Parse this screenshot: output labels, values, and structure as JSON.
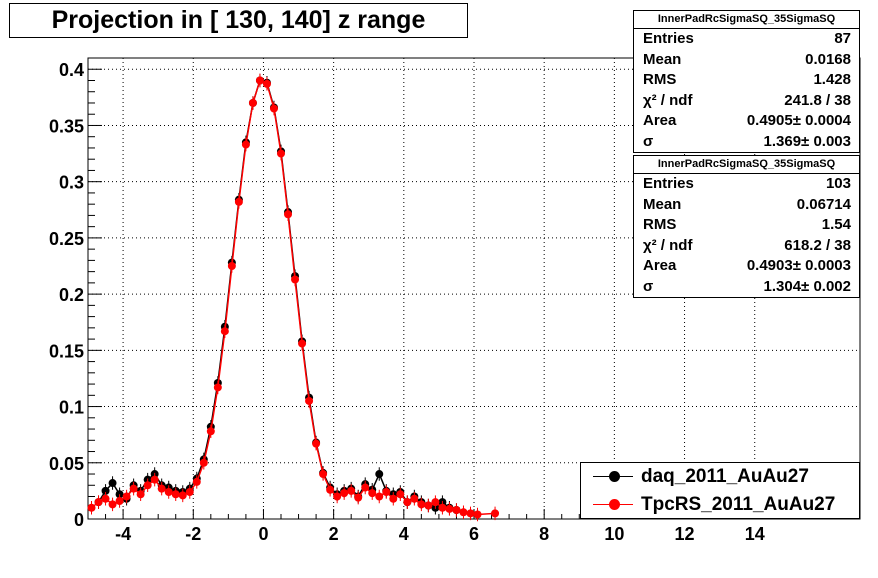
{
  "title": "Projection in [ 130, 140] z range",
  "stats": [
    {
      "name": "InnerPadRcSigmaSQ_35SigmaSQ",
      "rows": [
        {
          "label": "Entries",
          "value": "87"
        },
        {
          "label": "Mean",
          "value": "0.0168"
        },
        {
          "label": "RMS",
          "value": "1.428"
        },
        {
          "label": "χ² / ndf",
          "value": "241.8 / 38"
        },
        {
          "label": "Area",
          "value": "0.4905± 0.0004"
        },
        {
          "label": "σ",
          "value": "1.369± 0.003"
        }
      ]
    },
    {
      "name": "InnerPadRcSigmaSQ_35SigmaSQ",
      "rows": [
        {
          "label": "Entries",
          "value": "103"
        },
        {
          "label": "Mean",
          "value": "0.06714"
        },
        {
          "label": "RMS",
          "value": "1.54"
        },
        {
          "label": "χ² / ndf",
          "value": "618.2 / 38"
        },
        {
          "label": "Area",
          "value": "0.4903± 0.0003"
        },
        {
          "label": "σ",
          "value": "1.304± 0.002"
        }
      ]
    }
  ],
  "chart_data": {
    "type": "scatter",
    "title": "Projection in [ 130, 140] z range",
    "xlabel": "",
    "ylabel": "",
    "xlim": [
      -5,
      17
    ],
    "ylim": [
      0,
      0.41
    ],
    "grid": true,
    "legend_position": "bottom-right",
    "x_ticks": [
      -4,
      -2,
      0,
      2,
      4,
      6,
      8,
      10,
      12,
      14
    ],
    "y_ticks": [
      0,
      0.05,
      0.1,
      0.15,
      0.2,
      0.25,
      0.3,
      0.35,
      0.4
    ],
    "x_tick_labels": [
      "-4",
      "-2",
      "0",
      "2",
      "4",
      "6",
      "8",
      "10",
      "12",
      "14"
    ],
    "y_tick_labels": [
      "0",
      "0.05",
      "0.1",
      "0.15",
      "0.2",
      "0.25",
      "0.3",
      "0.35",
      "0.4"
    ],
    "series": [
      {
        "name": "daq_2011_AuAu27",
        "color": "#000000",
        "x": [
          -4.7,
          -4.5,
          -4.3,
          -4.1,
          -3.9,
          -3.7,
          -3.5,
          -3.3,
          -3.1,
          -2.9,
          -2.7,
          -2.5,
          -2.3,
          -2.1,
          -1.9,
          -1.7,
          -1.5,
          -1.3,
          -1.1,
          -0.9,
          -0.7,
          -0.5,
          -0.3,
          -0.1,
          0.1,
          0.3,
          0.5,
          0.7,
          0.9,
          1.1,
          1.3,
          1.5,
          1.7,
          1.9,
          2.1,
          2.3,
          2.5,
          2.7,
          2.9,
          3.1,
          3.3,
          3.5,
          3.7,
          3.9,
          4.1,
          4.3,
          4.5,
          4.7,
          4.9,
          5.1,
          5.3,
          5.5
        ],
        "values": [
          0.015,
          0.025,
          0.032,
          0.022,
          0.018,
          0.03,
          0.025,
          0.035,
          0.04,
          0.03,
          0.028,
          0.025,
          0.024,
          0.027,
          0.036,
          0.053,
          0.082,
          0.121,
          0.171,
          0.228,
          0.284,
          0.335,
          0.37,
          0.39,
          0.388,
          0.366,
          0.327,
          0.273,
          0.216,
          0.158,
          0.108,
          0.068,
          0.041,
          0.028,
          0.022,
          0.025,
          0.027,
          0.02,
          0.031,
          0.026,
          0.04,
          0.025,
          0.022,
          0.024,
          0.015,
          0.02,
          0.015,
          0.012,
          0.01,
          0.015,
          0.01,
          0.008
        ]
      },
      {
        "name": "TpcRS_2011_AuAu27",
        "color": "#ff0000",
        "x": [
          -4.9,
          -4.7,
          -4.5,
          -4.3,
          -4.1,
          -3.9,
          -3.7,
          -3.5,
          -3.3,
          -3.1,
          -2.9,
          -2.7,
          -2.5,
          -2.3,
          -2.1,
          -1.9,
          -1.7,
          -1.5,
          -1.3,
          -1.1,
          -0.9,
          -0.7,
          -0.5,
          -0.3,
          -0.1,
          0.1,
          0.3,
          0.5,
          0.7,
          0.9,
          1.1,
          1.3,
          1.5,
          1.7,
          1.9,
          2.1,
          2.3,
          2.5,
          2.7,
          2.9,
          3.1,
          3.3,
          3.5,
          3.7,
          3.9,
          4.1,
          4.3,
          4.5,
          4.7,
          4.9,
          5.1,
          5.3,
          5.5,
          5.7,
          5.9,
          6.1,
          6.6
        ],
        "values": [
          0.01,
          0.015,
          0.018,
          0.013,
          0.016,
          0.02,
          0.027,
          0.022,
          0.03,
          0.035,
          0.027,
          0.024,
          0.022,
          0.021,
          0.024,
          0.033,
          0.05,
          0.078,
          0.117,
          0.167,
          0.225,
          0.282,
          0.333,
          0.37,
          0.39,
          0.387,
          0.365,
          0.325,
          0.271,
          0.213,
          0.156,
          0.105,
          0.067,
          0.04,
          0.026,
          0.02,
          0.023,
          0.025,
          0.019,
          0.028,
          0.023,
          0.02,
          0.024,
          0.018,
          0.022,
          0.015,
          0.018,
          0.013,
          0.012,
          0.015,
          0.01,
          0.009,
          0.008,
          0.006,
          0.005,
          0.004,
          0.005
        ]
      }
    ]
  }
}
